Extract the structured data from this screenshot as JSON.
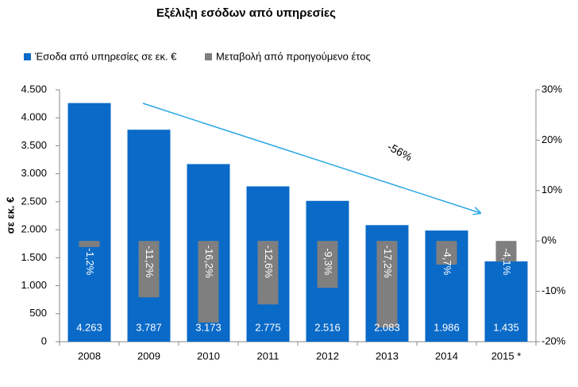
{
  "chart_data": {
    "type": "bar",
    "title": "Εξέλιξη εσόδων από υπηρεσίες",
    "ylabel": "σε εκ. €",
    "categories": [
      "2008",
      "2009",
      "2010",
      "2011",
      "2012",
      "2013",
      "2014",
      "2015 *"
    ],
    "series": [
      {
        "name": "Έσοδα από υπηρεσίες σε εκ. €",
        "color": "#0a6ac8",
        "values": [
          4263,
          3787,
          3173,
          2775,
          2516,
          2083,
          1986,
          1435
        ],
        "value_labels": [
          "4.263",
          "3.787",
          "3.173",
          "2.775",
          "2.516",
          "2.083",
          "1.986",
          "1.435"
        ]
      },
      {
        "name": "Μεταβολή από προηγούμενο έτος",
        "color": "#7f7f7f",
        "axis": "y2",
        "values": [
          -1.2,
          -11.2,
          -16.2,
          -12.6,
          -9.3,
          -17.2,
          -4.7,
          -4.1
        ],
        "value_labels": [
          "-1,2%",
          "-11,2%",
          "-16,2%",
          "-12,6%",
          "-9,3%",
          "-17,2%",
          "-4,7%",
          "-4,1%"
        ]
      }
    ],
    "ylim": [
      0,
      4500
    ],
    "yticks": [
      0,
      {
        "value": 500,
        "label": "500"
      },
      {
        "value": 1000,
        "label": "1.000"
      },
      {
        "value": 1500,
        "label": "1.500"
      },
      {
        "value": 2000,
        "label": "2.000"
      },
      {
        "value": 2500,
        "label": "2.500"
      },
      {
        "value": 3000,
        "label": "3.000"
      },
      {
        "value": 3500,
        "label": "3.500"
      },
      {
        "value": 4000,
        "label": "4.000"
      },
      {
        "value": 4500,
        "label": "4.500"
      }
    ],
    "y2lim": [
      -20,
      30
    ],
    "y2ticks": [
      {
        "value": -20,
        "label": "-20%"
      },
      {
        "value": -10,
        "label": "-10%"
      },
      {
        "value": 0,
        "label": "0%"
      },
      {
        "value": 10,
        "label": "10%"
      },
      {
        "value": 20,
        "label": "20%"
      },
      {
        "value": 30,
        "label": "30%"
      }
    ],
    "annotation": "-56%",
    "grid": false
  }
}
